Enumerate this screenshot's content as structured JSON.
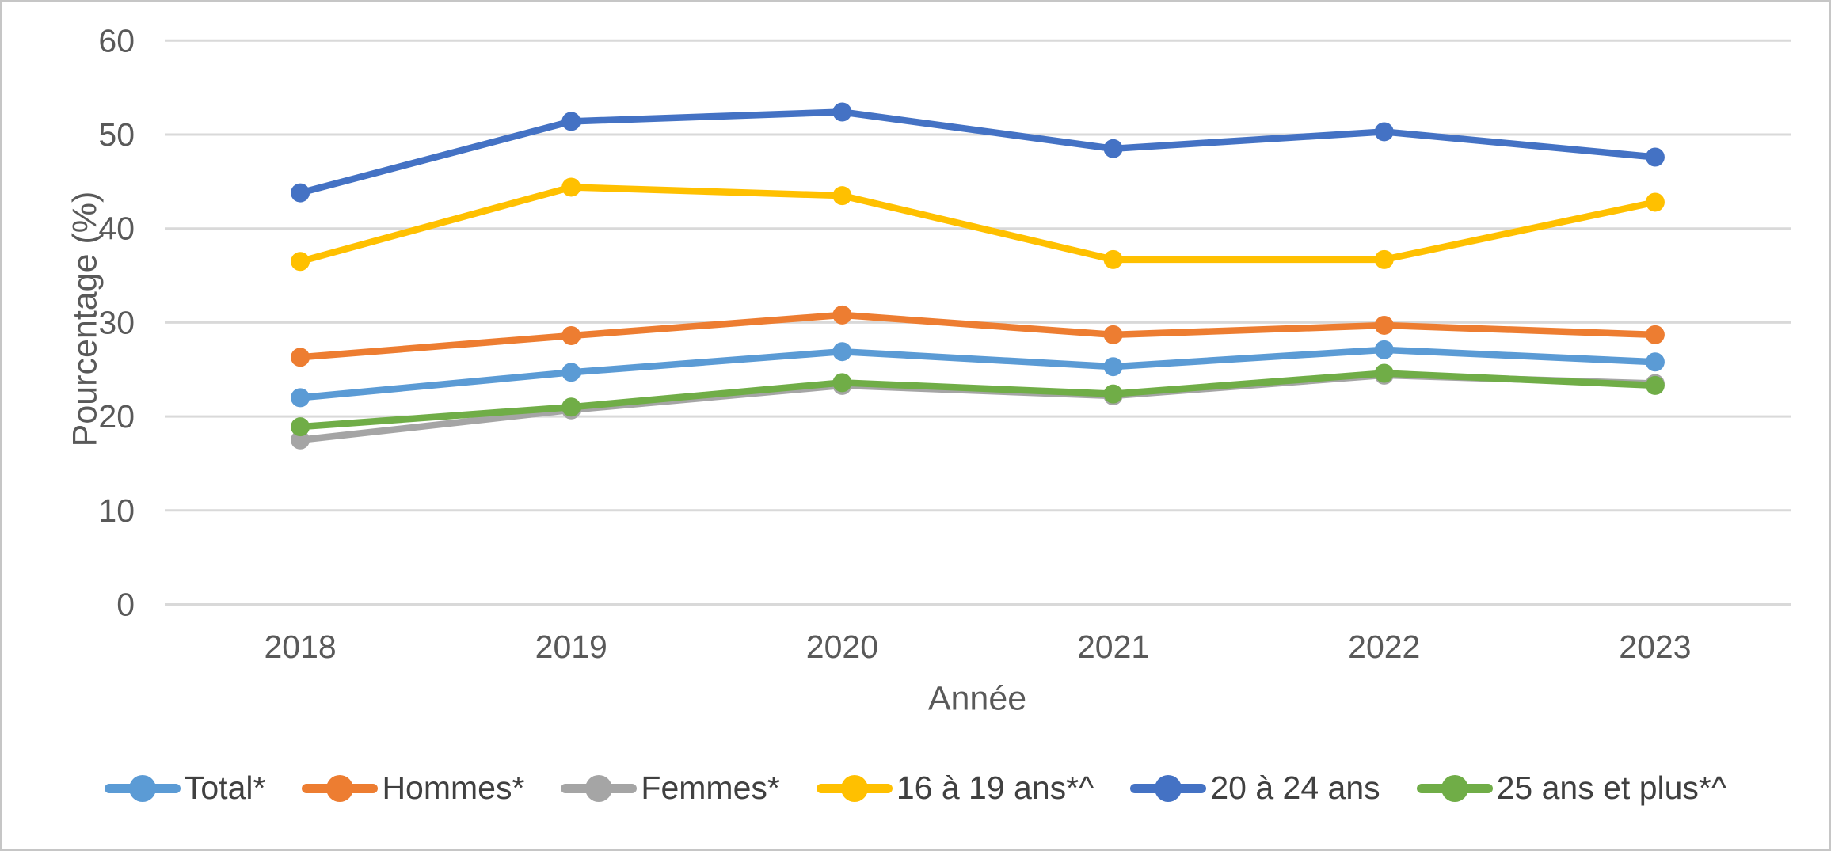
{
  "chart_data": {
    "type": "line",
    "xlabel": "Année",
    "ylabel": "Pourcentage (%)",
    "categories": [
      "2018",
      "2019",
      "2020",
      "2021",
      "2022",
      "2023"
    ],
    "yticks": [
      0,
      10,
      20,
      30,
      40,
      50,
      60
    ],
    "ylim": [
      0,
      60
    ],
    "grid": "horizontal",
    "gridline_color": "#d9d9d9",
    "axis_text_color": "#595959",
    "legend_text_color": "#404040",
    "legend_position": "bottom",
    "marker": "circle",
    "series": [
      {
        "name": "Total*",
        "color": "#5B9BD5",
        "values": [
          22.0,
          24.7,
          26.9,
          25.3,
          27.1,
          25.8
        ]
      },
      {
        "name": "Hommes*",
        "color": "#ED7D31",
        "values": [
          26.3,
          28.6,
          30.8,
          28.7,
          29.7,
          28.7
        ]
      },
      {
        "name": "Femmes*",
        "color": "#A5A5A5",
        "values": [
          17.5,
          20.7,
          23.3,
          22.2,
          24.4,
          23.5
        ]
      },
      {
        "name": "16 à 19 ans*^",
        "color": "#FFC000",
        "values": [
          36.5,
          44.4,
          43.5,
          36.7,
          36.7,
          42.8
        ]
      },
      {
        "name": "20 à 24 ans",
        "color": "#4472C4",
        "values": [
          43.8,
          51.4,
          52.4,
          48.5,
          50.3,
          47.6
        ]
      },
      {
        "name": "25 ans et plus*^",
        "color": "#70AD47",
        "values": [
          18.9,
          21.0,
          23.6,
          22.4,
          24.6,
          23.3
        ]
      }
    ]
  }
}
